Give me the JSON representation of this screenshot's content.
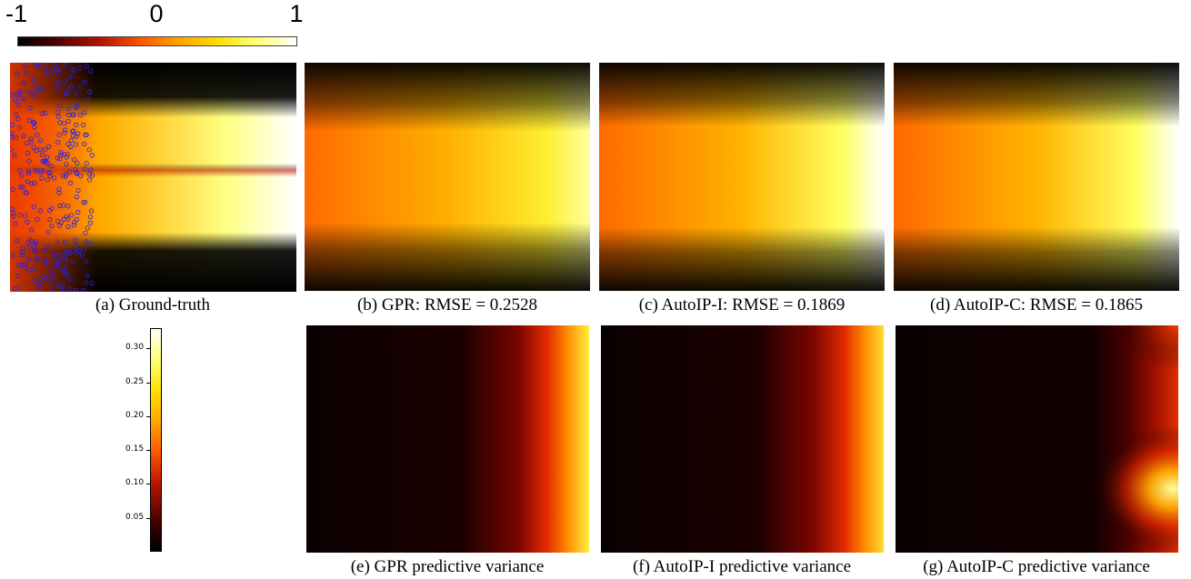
{
  "colormap": "afmhot",
  "colormap_stops": [
    "#000000",
    "#3d0000",
    "#b81300",
    "#ff5a00",
    "#ffa500",
    "#ffe000",
    "#ffff70",
    "#ffffff"
  ],
  "top_colorbar": {
    "ticks": [
      {
        "label": "-1",
        "value": -1
      },
      {
        "label": "0",
        "value": 0
      },
      {
        "label": "1",
        "value": 1
      }
    ],
    "range": [
      -1,
      1
    ]
  },
  "variance_colorbar": {
    "ticks": [
      {
        "label": "0.30",
        "value": 0.3
      },
      {
        "label": "0.25",
        "value": 0.25
      },
      {
        "label": "0.20",
        "value": 0.2
      },
      {
        "label": "0.15",
        "value": 0.15
      },
      {
        "label": "0.10",
        "value": 0.1
      },
      {
        "label": "0.05",
        "value": 0.05
      }
    ],
    "range": [
      0,
      0.33
    ]
  },
  "marker_color": "#2222ee",
  "chart_data": [
    {
      "type": "heatmap",
      "title": "(a) Ground-truth",
      "description_values": "field from -1 to 1 with training points on left region",
      "training_points_count": 300
    },
    {
      "type": "heatmap",
      "title": "(b) GPR: RMSE = 0.2528",
      "rmse": 0.2528
    },
    {
      "type": "heatmap",
      "title": "(c) AutoIP-I: RMSE = 0.1869",
      "rmse": 0.1869
    },
    {
      "type": "heatmap",
      "title": "(d) AutoIP-C: RMSE = 0.1865",
      "rmse": 0.1865
    },
    {
      "type": "heatmap",
      "title": "(e) GPR predictive variance",
      "range": [
        0,
        0.33
      ]
    },
    {
      "type": "heatmap",
      "title": "(f) AutoIP-I predictive variance",
      "range": [
        0,
        0.33
      ]
    },
    {
      "type": "heatmap",
      "title": "(g) AutoIP-C predictive variance",
      "range": [
        0,
        0.33
      ]
    }
  ]
}
